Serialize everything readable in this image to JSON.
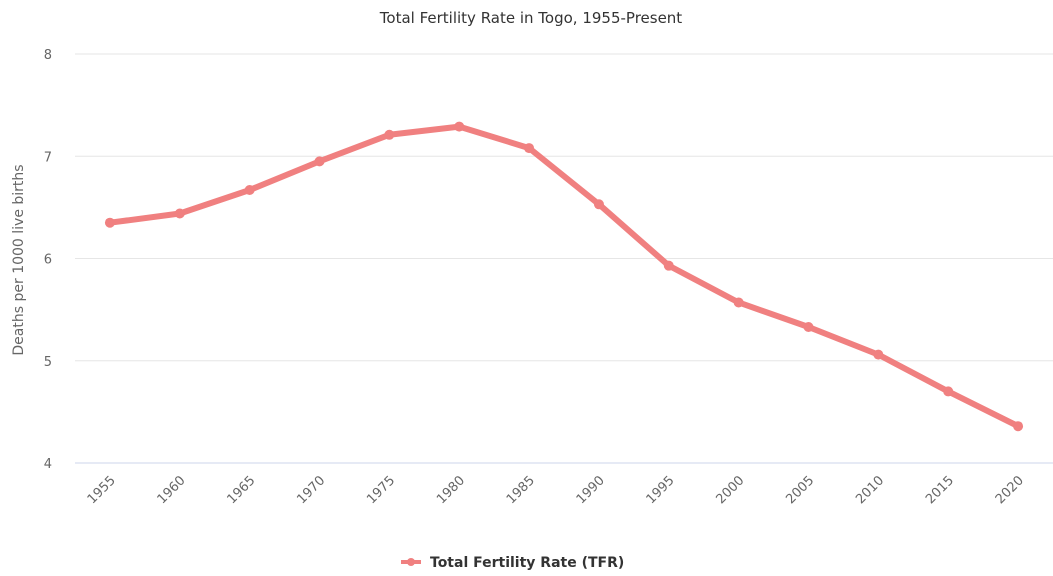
{
  "chart_data": {
    "type": "line",
    "title": "Total Fertility Rate in Togo, 1955-Present",
    "ylabel": "Deaths per 1000 live births",
    "xlabel": "",
    "x": [
      "1955",
      "1960",
      "1965",
      "1970",
      "1975",
      "1980",
      "1985",
      "1990",
      "1995",
      "2000",
      "2005",
      "2010",
      "2015",
      "2020"
    ],
    "y_ticks": [
      "4",
      "5",
      "6",
      "7",
      "8"
    ],
    "ylim": [
      4,
      8
    ],
    "grid": true,
    "legend_position": "bottom-center",
    "series": [
      {
        "name": "Total Fertility Rate (TFR)",
        "color": "#f08080",
        "values": [
          6.35,
          6.44,
          6.67,
          6.95,
          7.21,
          7.29,
          7.08,
          6.53,
          5.93,
          5.57,
          5.33,
          5.06,
          4.7,
          4.36
        ]
      }
    ]
  }
}
